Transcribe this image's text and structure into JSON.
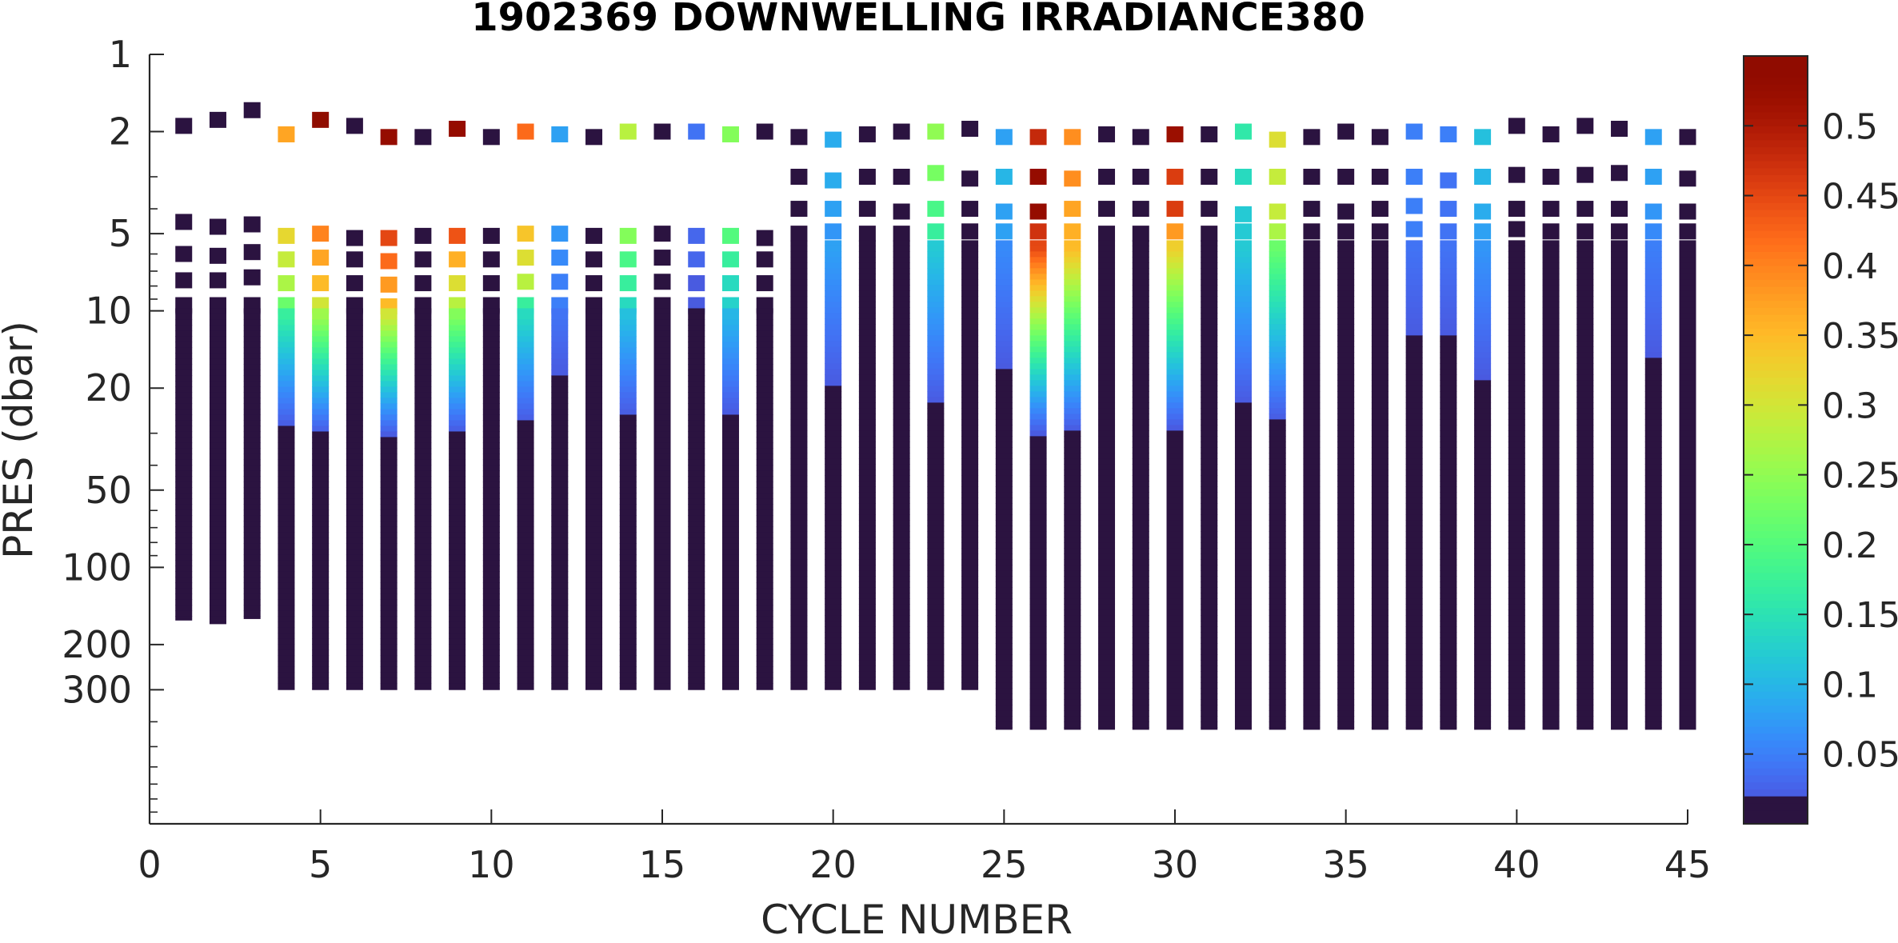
{
  "chart_data": {
    "type": "scatter",
    "title": "1902369  DOWNWELLING IRRADIANCE380",
    "xlabel": "CYCLE NUMBER",
    "ylabel": "PRES (dbar)",
    "xlim": [
      0,
      45
    ],
    "ylim": [
      1,
      1000
    ],
    "y_scale": "log",
    "y_reversed": true,
    "grid": false,
    "xticks": [
      0,
      5,
      10,
      15,
      20,
      25,
      30,
      35,
      40,
      45
    ],
    "yticks": [
      1,
      2,
      5,
      10,
      20,
      50,
      100,
      200,
      300
    ],
    "colorbar": {
      "ticks": [
        0.05,
        0.1,
        0.15,
        0.2,
        0.25,
        0.3,
        0.35,
        0.4,
        0.45,
        0.5
      ],
      "clim": [
        0,
        0.55
      ],
      "colormap": "turbo"
    },
    "profiles": [
      {
        "cycle": 1,
        "surface": [
          [
            1.9,
            0.002
          ],
          [
            4.5,
            0.002
          ],
          [
            6.0,
            0.002
          ],
          [
            7.6,
            0.002
          ],
          [
            9.5,
            0.002
          ]
        ],
        "continuous_from": 10.5,
        "max_pres": 150,
        "peak": 0.002
      },
      {
        "cycle": 2,
        "surface": [
          [
            1.8,
            0.002
          ],
          [
            4.7,
            0.002
          ],
          [
            6.1,
            0.002
          ],
          [
            7.6,
            0.002
          ],
          [
            9.5,
            0.002
          ]
        ],
        "continuous_from": 10.5,
        "max_pres": 155,
        "peak": 0.002
      },
      {
        "cycle": 3,
        "surface": [
          [
            1.65,
            0.002
          ],
          [
            4.6,
            0.002
          ],
          [
            5.9,
            0.002
          ],
          [
            7.4,
            0.002
          ],
          [
            9.5,
            0.002
          ]
        ],
        "continuous_from": 10.5,
        "max_pres": 148,
        "peak": 0.002
      },
      {
        "cycle": 4,
        "surface": [
          [
            2.05,
            0.37
          ],
          [
            5.1,
            0.32
          ],
          [
            6.3,
            0.29
          ],
          [
            7.8,
            0.27
          ],
          [
            9.5,
            0.22
          ]
        ],
        "continuous_from": 10.5,
        "max_pres": 280,
        "peak": 0.17
      },
      {
        "cycle": 5,
        "surface": [
          [
            1.8,
            0.55
          ],
          [
            5.0,
            0.4
          ],
          [
            6.2,
            0.37
          ],
          [
            7.8,
            0.35
          ],
          [
            9.5,
            0.3
          ]
        ],
        "continuous_from": 10.5,
        "max_pres": 280,
        "peak": 0.26
      },
      {
        "cycle": 6,
        "surface": [
          [
            1.9,
            0.002
          ],
          [
            5.2,
            0.002
          ],
          [
            6.3,
            0.002
          ],
          [
            7.8,
            0.002
          ],
          [
            9.5,
            0.002
          ]
        ],
        "continuous_from": 10.5,
        "max_pres": 280,
        "peak": 0.002
      },
      {
        "cycle": 7,
        "surface": [
          [
            2.1,
            0.53
          ],
          [
            5.2,
            0.45
          ],
          [
            6.4,
            0.42
          ],
          [
            7.9,
            0.38
          ],
          [
            9.6,
            0.35
          ]
        ],
        "continuous_from": 10.5,
        "max_pres": 280,
        "peak": 0.3
      },
      {
        "cycle": 8,
        "surface": [
          [
            2.1,
            0.002
          ],
          [
            5.1,
            0.002
          ],
          [
            6.3,
            0.002
          ],
          [
            7.8,
            0.002
          ],
          [
            9.5,
            0.002
          ]
        ],
        "continuous_from": 10.5,
        "max_pres": 280,
        "peak": 0.002
      },
      {
        "cycle": 9,
        "surface": [
          [
            1.95,
            0.53
          ],
          [
            5.1,
            0.44
          ],
          [
            6.3,
            0.36
          ],
          [
            7.8,
            0.31
          ],
          [
            9.5,
            0.28
          ]
        ],
        "continuous_from": 10.5,
        "max_pres": 280,
        "peak": 0.24
      },
      {
        "cycle": 10,
        "surface": [
          [
            2.1,
            0.002
          ],
          [
            5.1,
            0.002
          ],
          [
            6.3,
            0.002
          ],
          [
            7.8,
            0.002
          ],
          [
            9.5,
            0.002
          ]
        ],
        "continuous_from": 10.5,
        "max_pres": 280,
        "peak": 0.002
      },
      {
        "cycle": 11,
        "surface": [
          [
            2.0,
            0.42
          ],
          [
            5.0,
            0.34
          ],
          [
            6.2,
            0.31
          ],
          [
            7.7,
            0.28
          ],
          [
            9.5,
            0.17
          ]
        ],
        "continuous_from": 10.5,
        "max_pres": 280,
        "peak": 0.14
      },
      {
        "cycle": 12,
        "surface": [
          [
            2.05,
            0.08
          ],
          [
            5.0,
            0.07
          ],
          [
            6.2,
            0.06
          ],
          [
            7.7,
            0.05
          ],
          [
            9.5,
            0.05
          ]
        ],
        "continuous_from": 10.5,
        "max_pres": 280,
        "peak": 0.04
      },
      {
        "cycle": 13,
        "surface": [
          [
            2.1,
            0.002
          ],
          [
            5.1,
            0.002
          ],
          [
            6.3,
            0.002
          ],
          [
            7.8,
            0.002
          ],
          [
            9.5,
            0.002
          ]
        ],
        "continuous_from": 10.5,
        "max_pres": 280,
        "peak": 0.002
      },
      {
        "cycle": 14,
        "surface": [
          [
            2.0,
            0.28
          ],
          [
            5.1,
            0.24
          ],
          [
            6.3,
            0.19
          ],
          [
            7.8,
            0.17
          ],
          [
            9.5,
            0.14
          ]
        ],
        "continuous_from": 10.5,
        "max_pres": 280,
        "peak": 0.11
      },
      {
        "cycle": 15,
        "surface": [
          [
            2.0,
            0.002
          ],
          [
            5.0,
            0.002
          ],
          [
            6.2,
            0.002
          ],
          [
            7.7,
            0.002
          ],
          [
            9.5,
            0.002
          ]
        ],
        "continuous_from": 10.5,
        "max_pres": 280,
        "peak": 0.002
      },
      {
        "cycle": 16,
        "surface": [
          [
            2.0,
            0.04
          ],
          [
            5.1,
            0.03
          ],
          [
            6.3,
            0.03
          ],
          [
            7.8,
            0.02
          ],
          [
            9.5,
            0.02
          ]
        ],
        "continuous_from": 10.5,
        "max_pres": 280,
        "peak": 0.01
      },
      {
        "cycle": 17,
        "surface": [
          [
            2.05,
            0.24
          ],
          [
            5.1,
            0.2
          ],
          [
            6.3,
            0.17
          ],
          [
            7.8,
            0.14
          ],
          [
            9.5,
            0.13
          ]
        ],
        "continuous_from": 10.5,
        "max_pres": 280,
        "peak": 0.1
      },
      {
        "cycle": 18,
        "surface": [
          [
            2.0,
            0.002
          ],
          [
            5.2,
            0.002
          ],
          [
            6.3,
            0.002
          ],
          [
            7.8,
            0.002
          ],
          [
            9.5,
            0.002
          ]
        ],
        "continuous_from": 10.5,
        "max_pres": 280,
        "peak": 0.002
      },
      {
        "cycle": 19,
        "surface": [
          [
            2.1,
            0.002
          ],
          [
            3.0,
            0.002
          ],
          [
            4.0,
            0.002
          ],
          [
            5.0,
            0.002
          ]
        ],
        "continuous_from": 5.7,
        "max_pres": 280,
        "peak": 0.002
      },
      {
        "cycle": 20,
        "surface": [
          [
            2.15,
            0.09
          ],
          [
            3.1,
            0.09
          ],
          [
            4.0,
            0.08
          ],
          [
            4.9,
            0.07
          ]
        ],
        "continuous_from": 5.7,
        "max_pres": 280,
        "peak": 0.08
      },
      {
        "cycle": 21,
        "surface": [
          [
            2.05,
            0.002
          ],
          [
            3.0,
            0.002
          ],
          [
            4.0,
            0.002
          ],
          [
            5.0,
            0.002
          ]
        ],
        "continuous_from": 5.7,
        "max_pres": 280,
        "peak": 0.002
      },
      {
        "cycle": 22,
        "surface": [
          [
            2.0,
            0.002
          ],
          [
            3.0,
            0.002
          ],
          [
            4.1,
            0.002
          ],
          [
            5.0,
            0.002
          ]
        ],
        "continuous_from": 5.7,
        "max_pres": 280,
        "peak": 0.002
      },
      {
        "cycle": 23,
        "surface": [
          [
            2.0,
            0.25
          ],
          [
            2.9,
            0.23
          ],
          [
            4.0,
            0.19
          ],
          [
            4.9,
            0.17
          ]
        ],
        "continuous_from": 5.7,
        "max_pres": 280,
        "peak": 0.12
      },
      {
        "cycle": 24,
        "surface": [
          [
            1.95,
            0.002
          ],
          [
            3.05,
            0.002
          ],
          [
            4.0,
            0.002
          ],
          [
            4.9,
            0.002
          ]
        ],
        "continuous_from": 5.7,
        "max_pres": 280,
        "peak": 0.002
      },
      {
        "cycle": 25,
        "surface": [
          [
            2.1,
            0.08
          ],
          [
            3.0,
            0.1
          ],
          [
            4.1,
            0.08
          ],
          [
            4.9,
            0.08
          ]
        ],
        "continuous_from": 5.7,
        "max_pres": 400,
        "peak": 0.06
      },
      {
        "cycle": 26,
        "surface": [
          [
            2.1,
            0.48
          ],
          [
            3.0,
            0.53
          ],
          [
            4.1,
            0.53
          ],
          [
            4.9,
            0.47
          ]
        ],
        "continuous_from": 5.7,
        "max_pres": 400,
        "peak": 0.45
      },
      {
        "cycle": 27,
        "surface": [
          [
            2.1,
            0.39
          ],
          [
            3.05,
            0.39
          ],
          [
            4.0,
            0.37
          ],
          [
            4.9,
            0.36
          ]
        ],
        "continuous_from": 5.7,
        "max_pres": 400,
        "peak": 0.35
      },
      {
        "cycle": 28,
        "surface": [
          [
            2.05,
            0.002
          ],
          [
            3.0,
            0.002
          ],
          [
            4.0,
            0.002
          ],
          [
            5.0,
            0.002
          ]
        ],
        "continuous_from": 5.7,
        "max_pres": 400,
        "peak": 0.002
      },
      {
        "cycle": 29,
        "surface": [
          [
            2.1,
            0.002
          ],
          [
            3.0,
            0.002
          ],
          [
            4.0,
            0.002
          ],
          [
            5.0,
            0.002
          ]
        ],
        "continuous_from": 5.7,
        "max_pres": 400,
        "peak": 0.002
      },
      {
        "cycle": 30,
        "surface": [
          [
            2.05,
            0.52
          ],
          [
            3.0,
            0.46
          ],
          [
            4.0,
            0.46
          ],
          [
            4.9,
            0.38
          ]
        ],
        "continuous_from": 5.7,
        "max_pres": 400,
        "peak": 0.33
      },
      {
        "cycle": 31,
        "surface": [
          [
            2.05,
            0.002
          ],
          [
            3.0,
            0.002
          ],
          [
            4.0,
            0.002
          ],
          [
            5.0,
            0.002
          ]
        ],
        "continuous_from": 5.7,
        "max_pres": 400,
        "peak": 0.002
      },
      {
        "cycle": 32,
        "surface": [
          [
            2.0,
            0.16
          ],
          [
            3.0,
            0.14
          ],
          [
            4.2,
            0.12
          ],
          [
            4.9,
            0.12
          ]
        ],
        "continuous_from": 5.7,
        "max_pres": 400,
        "peak": 0.12
      },
      {
        "cycle": 33,
        "surface": [
          [
            2.15,
            0.31
          ],
          [
            3.0,
            0.29
          ],
          [
            4.1,
            0.29
          ],
          [
            4.9,
            0.27
          ]
        ],
        "continuous_from": 5.7,
        "max_pres": 400,
        "peak": 0.22
      },
      {
        "cycle": 34,
        "surface": [
          [
            2.1,
            0.002
          ],
          [
            3.0,
            0.002
          ],
          [
            4.0,
            0.002
          ],
          [
            4.9,
            0.002
          ]
        ],
        "continuous_from": 5.7,
        "max_pres": 400,
        "peak": 0.002
      },
      {
        "cycle": 35,
        "surface": [
          [
            2.0,
            0.002
          ],
          [
            3.0,
            0.002
          ],
          [
            4.1,
            0.002
          ],
          [
            4.9,
            0.002
          ]
        ],
        "continuous_from": 5.7,
        "max_pres": 400,
        "peak": 0.002
      },
      {
        "cycle": 36,
        "surface": [
          [
            2.1,
            0.002
          ],
          [
            3.0,
            0.002
          ],
          [
            4.0,
            0.002
          ],
          [
            4.9,
            0.002
          ]
        ],
        "continuous_from": 5.7,
        "max_pres": 400,
        "peak": 0.002
      },
      {
        "cycle": 37,
        "surface": [
          [
            2.0,
            0.05
          ],
          [
            3.0,
            0.05
          ],
          [
            3.9,
            0.05
          ],
          [
            4.8,
            0.05
          ]
        ],
        "continuous_from": 5.7,
        "max_pres": 400,
        "peak": 0.04
      },
      {
        "cycle": 38,
        "surface": [
          [
            2.05,
            0.05
          ],
          [
            3.1,
            0.04
          ],
          [
            4.0,
            0.04
          ],
          [
            4.9,
            0.04
          ]
        ],
        "continuous_from": 5.7,
        "max_pres": 400,
        "peak": 0.04
      },
      {
        "cycle": 39,
        "surface": [
          [
            2.1,
            0.11
          ],
          [
            3.0,
            0.1
          ],
          [
            4.1,
            0.09
          ],
          [
            4.9,
            0.08
          ]
        ],
        "continuous_from": 5.7,
        "max_pres": 400,
        "peak": 0.07
      },
      {
        "cycle": 40,
        "surface": [
          [
            1.9,
            0.002
          ],
          [
            2.95,
            0.002
          ],
          [
            4.0,
            0.002
          ],
          [
            4.8,
            0.002
          ]
        ],
        "continuous_from": 5.7,
        "max_pres": 400,
        "peak": 0.002
      },
      {
        "cycle": 41,
        "surface": [
          [
            2.05,
            0.002
          ],
          [
            3.0,
            0.002
          ],
          [
            4.0,
            0.002
          ],
          [
            4.9,
            0.002
          ]
        ],
        "continuous_from": 5.7,
        "max_pres": 400,
        "peak": 0.002
      },
      {
        "cycle": 42,
        "surface": [
          [
            1.9,
            0.002
          ],
          [
            2.95,
            0.002
          ],
          [
            4.0,
            0.002
          ],
          [
            4.9,
            0.002
          ]
        ],
        "continuous_from": 5.7,
        "max_pres": 400,
        "peak": 0.002
      },
      {
        "cycle": 43,
        "surface": [
          [
            1.95,
            0.002
          ],
          [
            2.9,
            0.002
          ],
          [
            4.0,
            0.002
          ],
          [
            4.9,
            0.002
          ]
        ],
        "continuous_from": 5.7,
        "max_pres": 400,
        "peak": 0.002
      },
      {
        "cycle": 44,
        "surface": [
          [
            2.1,
            0.08
          ],
          [
            3.0,
            0.08
          ],
          [
            4.1,
            0.07
          ],
          [
            4.9,
            0.06
          ]
        ],
        "continuous_from": 5.7,
        "max_pres": 400,
        "peak": 0.05
      },
      {
        "cycle": 45,
        "surface": [
          [
            2.1,
            0.002
          ],
          [
            3.05,
            0.002
          ],
          [
            4.1,
            0.002
          ],
          [
            4.9,
            0.002
          ]
        ],
        "continuous_from": 5.7,
        "max_pres": 400,
        "peak": 0.002
      }
    ]
  }
}
